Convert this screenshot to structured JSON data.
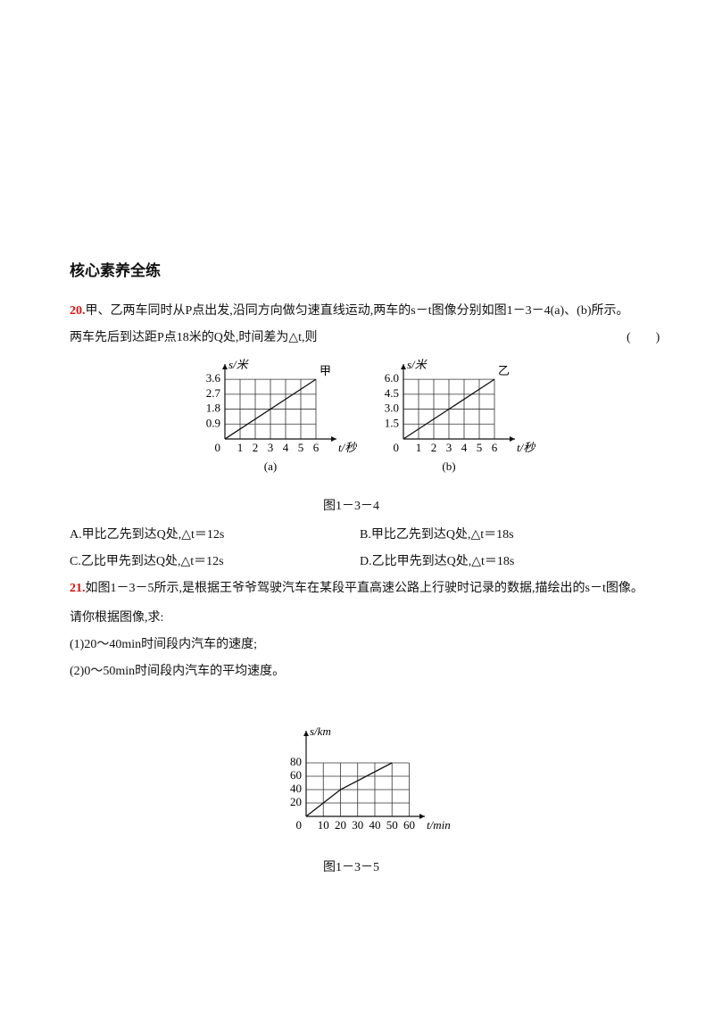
{
  "section_title": "核心素养全练",
  "q20": {
    "number": "20.",
    "line1": "甲、乙两车同时从P点出发,沿同方向做匀速直线运动,两车的s－t图像分别如图1－3－4(a)、(b)所示。",
    "line2": "两车先后到达距P点18米的Q处,时间差为△t,则",
    "paren": "(　　)",
    "figure_caption": "图1－3－4",
    "options": [
      "A.甲比乙先到达Q处,△t＝12s",
      "B.甲比乙先到达Q处,△t＝18s",
      "C.乙比甲先到达Q处,△t＝12s",
      "D.乙比甲先到达Q处,△t＝18s"
    ]
  },
  "q21": {
    "number": "21.",
    "line1": "如图1－3－5所示,是根据王爷爷驾驶汽车在某段平直高速公路上行驶时记录的数据,描绘出的s－t图像。",
    "line2": "请你根据图像,求:",
    "line3": "(1)20～40min时间段内汽车的速度;",
    "line4": "(2)0～50min时间段内汽车的平均速度。",
    "figure_caption": "图1－3－5"
  },
  "chart_data": [
    {
      "type": "line",
      "ylabel": "s/米",
      "xlabel": "t/秒",
      "line_label": "甲",
      "caption": "(a)",
      "origin_label": "0",
      "x": [
        0,
        6
      ],
      "series": [
        {
          "values": [
            0,
            3.6
          ],
          "color": "#111"
        }
      ],
      "xlim": [
        0,
        7
      ],
      "ylim": [
        0,
        4.2
      ],
      "xticks": [
        1,
        2,
        3,
        4,
        5,
        6
      ],
      "yticks": [
        0.9,
        1.8,
        2.7,
        3.6
      ],
      "grid": true
    },
    {
      "type": "line",
      "ylabel": "s/米",
      "xlabel": "t/秒",
      "line_label": "乙",
      "caption": "(b)",
      "origin_label": "0",
      "x": [
        0,
        6
      ],
      "series": [
        {
          "values": [
            0,
            6
          ],
          "color": "#111"
        }
      ],
      "xlim": [
        0,
        7
      ],
      "ylim": [
        0,
        7
      ],
      "xticks": [
        1,
        2,
        3,
        4,
        5,
        6
      ],
      "yticks": [
        1.5,
        {
          "value": 3,
          "label": "3.0"
        },
        4.5,
        {
          "value": 6,
          "label": "6.0"
        }
      ],
      "grid": true
    },
    {
      "type": "line",
      "ylabel": "s/km",
      "xlabel": "t/min",
      "origin_label": "0",
      "x": [
        0,
        20,
        50
      ],
      "series": [
        {
          "values": [
            0,
            40,
            80
          ],
          "color": "#111"
        }
      ],
      "xlim": [
        0,
        66
      ],
      "ylim": [
        0,
        120
      ],
      "xticks": [
        10,
        20,
        30,
        40,
        50,
        60
      ],
      "yticks": [
        20,
        40,
        60,
        80
      ],
      "grid": true
    }
  ]
}
